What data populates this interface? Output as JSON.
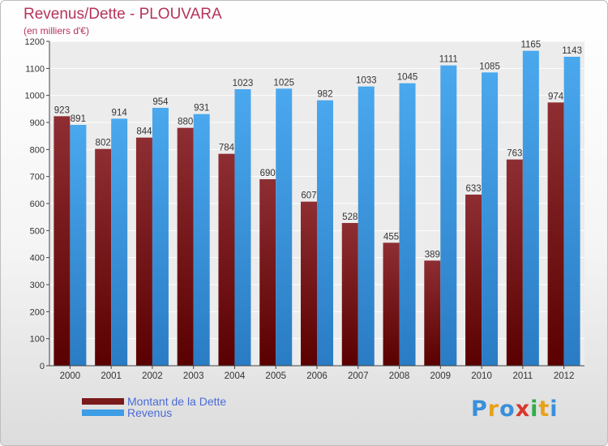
{
  "chart_data": {
    "type": "bar",
    "title": "Revenus/Dette - PLOUVARA",
    "subtitle": "(en milliers d'€)",
    "categories": [
      "2000",
      "2001",
      "2002",
      "2003",
      "2004",
      "2005",
      "2006",
      "2007",
      "2008",
      "2009",
      "2010",
      "2011",
      "2012"
    ],
    "series": [
      {
        "name": "Montant de la Dette",
        "color": "#7a1a1a",
        "values": [
          923,
          802,
          844,
          880,
          784,
          690,
          607,
          528,
          455,
          389,
          633,
          763,
          974
        ]
      },
      {
        "name": "Revenus",
        "color": "#3d9de6",
        "values": [
          891,
          914,
          954,
          931,
          1023,
          1025,
          982,
          1033,
          1045,
          1111,
          1085,
          1165,
          1143
        ]
      }
    ],
    "ylim": [
      0,
      1200
    ],
    "yticks": [
      0,
      100,
      200,
      300,
      400,
      500,
      600,
      700,
      800,
      900,
      1000,
      1100,
      1200
    ],
    "grid": true,
    "legend_position": "bottom-left"
  },
  "logo": {
    "letters": [
      "P",
      "r",
      "o",
      "x",
      "i",
      "t",
      "i"
    ],
    "colors": [
      "#3a8fd9",
      "#e8a21a",
      "#3a8fd9",
      "#d9362b",
      "#2fae4a",
      "#e8a21a",
      "#3a8fd9"
    ]
  }
}
